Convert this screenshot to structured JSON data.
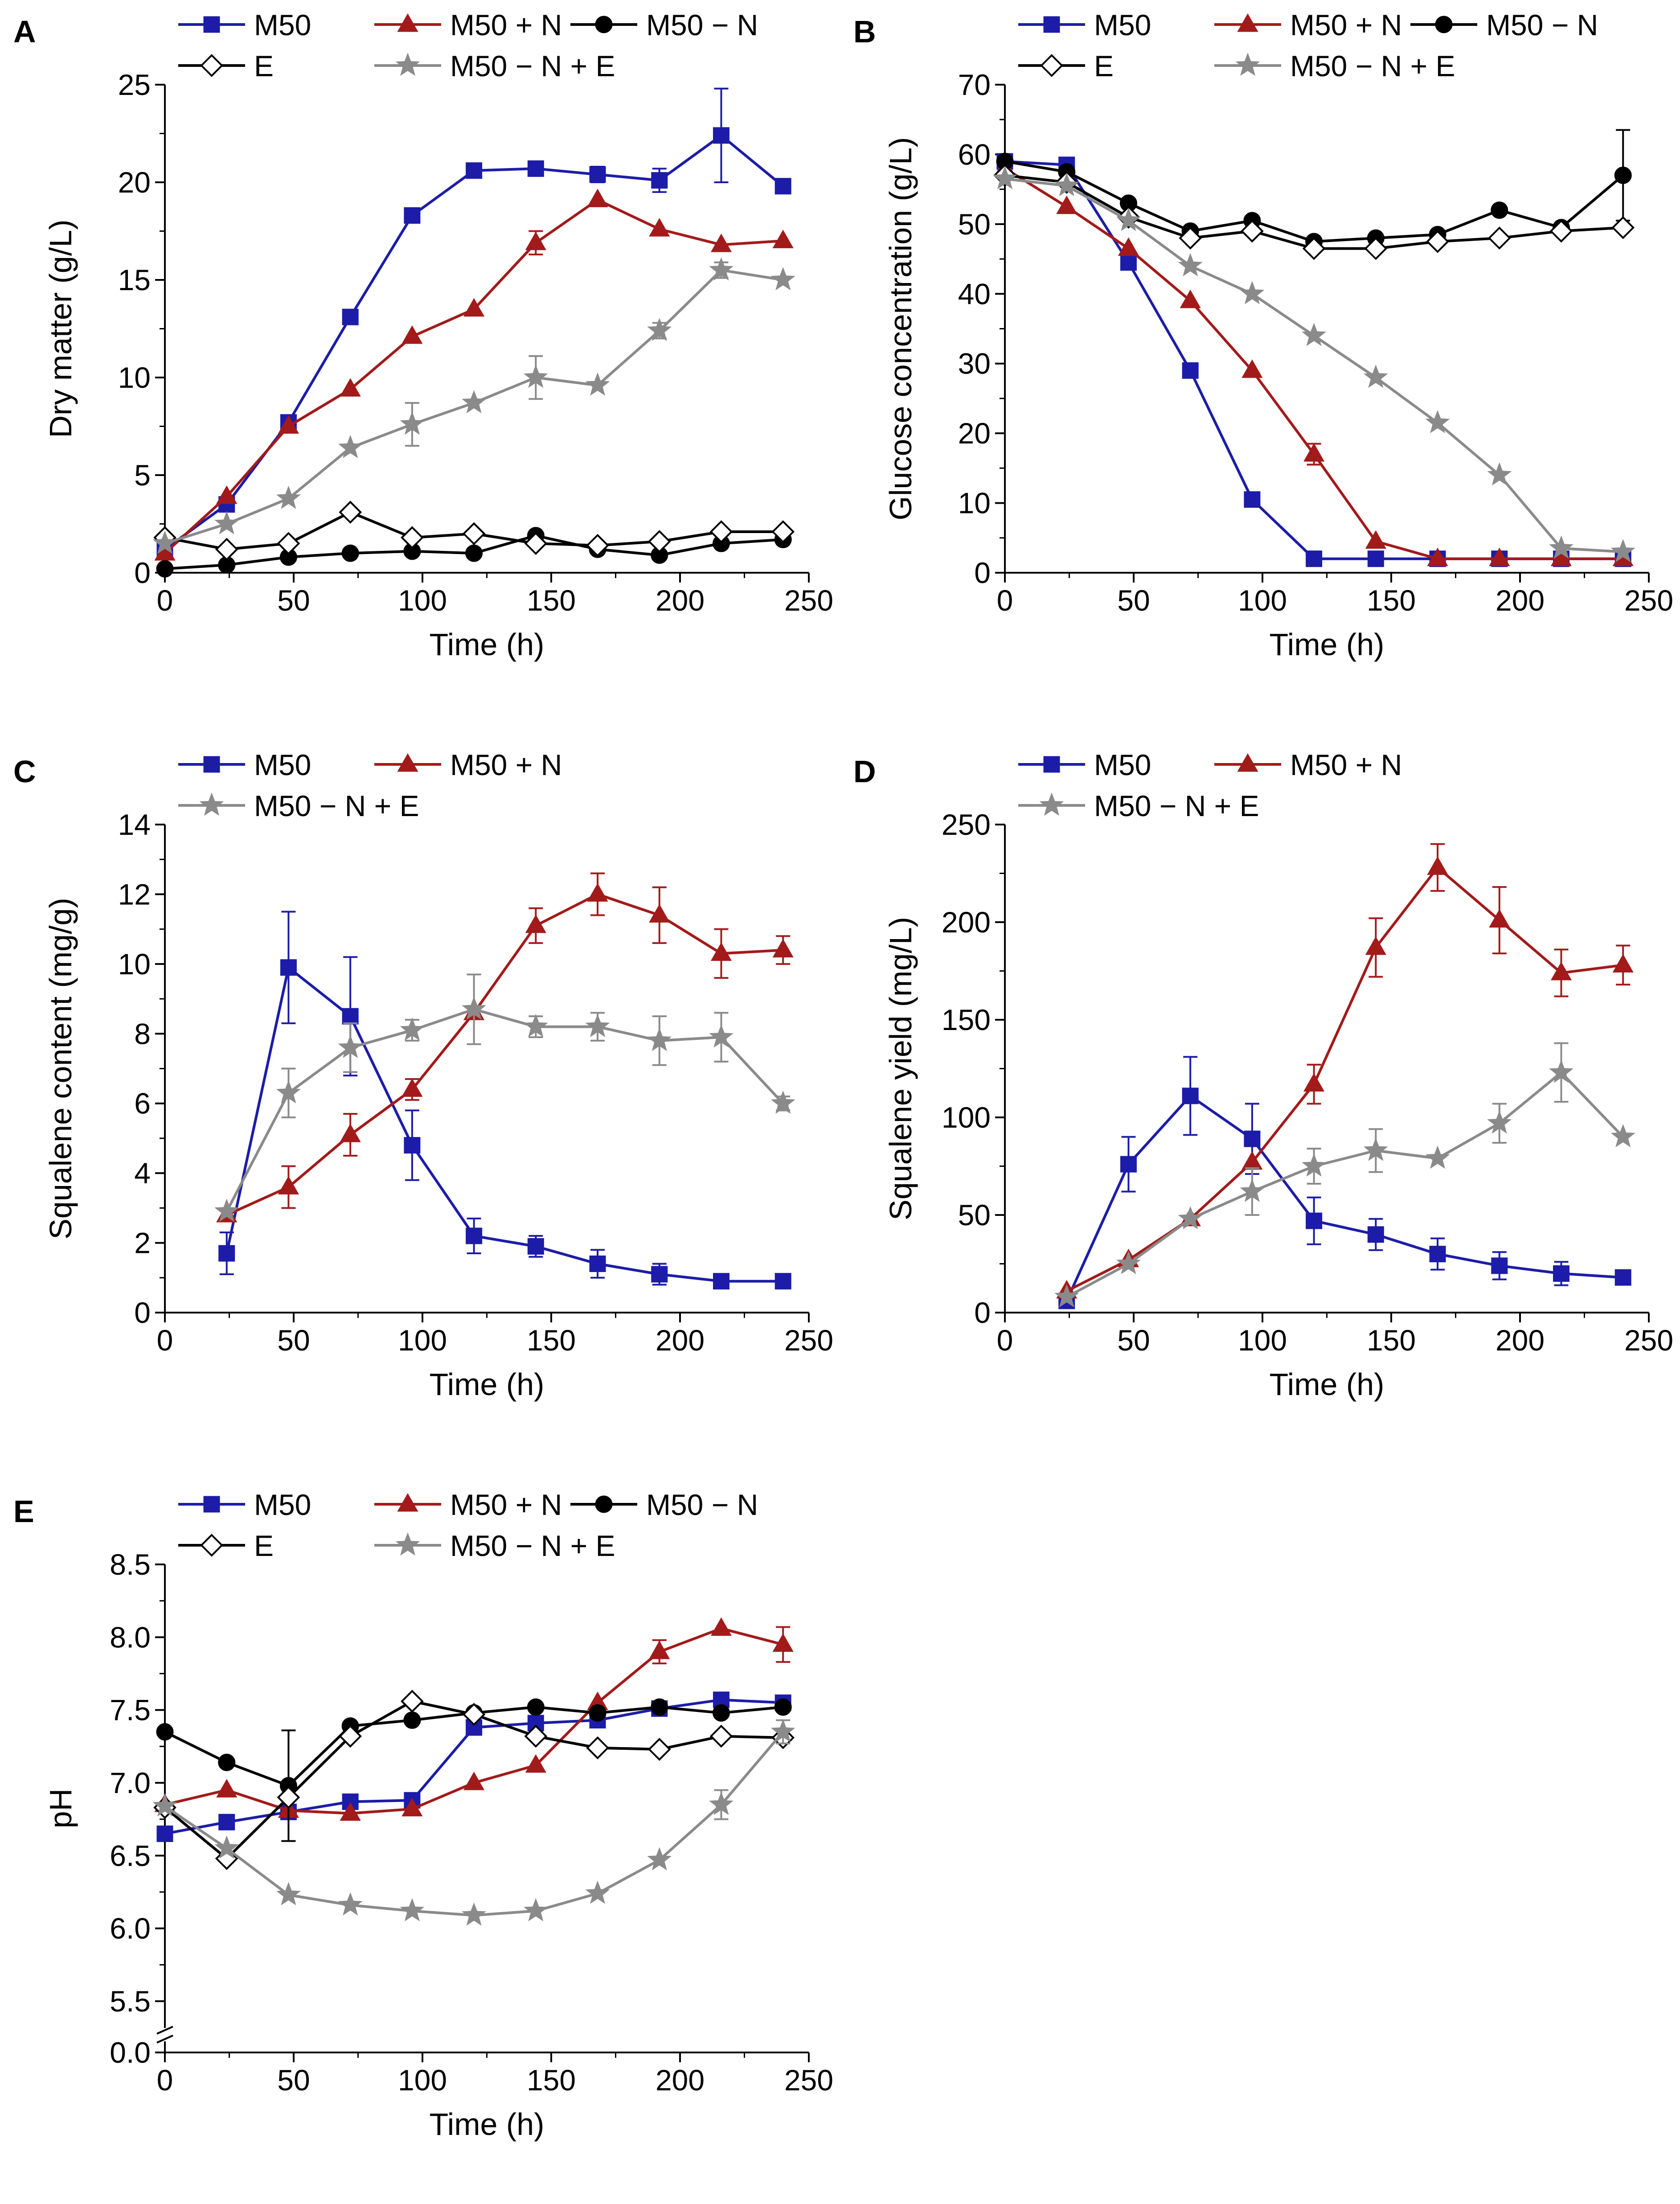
{
  "style": {
    "colors": {
      "M50": "#1c1ca8",
      "M50 + N": "#a31a1a",
      "M50 − N": "#000000",
      "E": "#000000",
      "M50 − N + E": "#8a8a8a"
    },
    "markers": {
      "M50": "square",
      "M50 + N": "triangle",
      "M50 − N": "circle",
      "E": "diamond",
      "M50 − N + E": "star"
    },
    "marker_fill": {
      "M50": "#1c1ca8",
      "M50 + N": "#a31a1a",
      "M50 − N": "#000000",
      "E": "#ffffff",
      "M50 − N + E": "#8a8a8a"
    }
  },
  "chart_data": [
    {
      "panel": "A",
      "type": "line",
      "xlabel": "Time (h)",
      "ylabel": "Dry matter (g/L)",
      "xlim": [
        0,
        250
      ],
      "ylim": [
        0,
        25
      ],
      "xticks": [
        0,
        50,
        100,
        150,
        200,
        250
      ],
      "yticks": [
        0,
        5,
        10,
        15,
        20,
        25
      ],
      "legend_rows": [
        [
          "M50",
          "M50 + N",
          "M50 − N"
        ],
        [
          "E",
          "M50 − N + E"
        ]
      ],
      "series": [
        {
          "name": "M50",
          "x": [
            0,
            24,
            48,
            72,
            96,
            120,
            144,
            168,
            192,
            216,
            240
          ],
          "y": [
            1.2,
            3.5,
            7.7,
            13.1,
            18.3,
            20.6,
            20.7,
            20.4,
            20.1,
            22.4,
            19.8
          ],
          "err": [
            0,
            0,
            0,
            0,
            0,
            0,
            0,
            0.4,
            0.6,
            2.4,
            0
          ]
        },
        {
          "name": "M50 + N",
          "x": [
            0,
            24,
            48,
            72,
            96,
            120,
            144,
            168,
            192,
            216,
            240
          ],
          "y": [
            1.0,
            3.9,
            7.5,
            9.4,
            12.1,
            13.5,
            16.9,
            19.1,
            17.6,
            16.8,
            17.0
          ],
          "err": [
            0,
            0,
            0,
            0,
            0,
            0,
            0.6,
            0,
            0,
            0,
            0
          ]
        },
        {
          "name": "M50 − N",
          "x": [
            0,
            24,
            48,
            72,
            96,
            120,
            144,
            168,
            192,
            216,
            240
          ],
          "y": [
            0.2,
            0.4,
            0.8,
            1.0,
            1.1,
            1.0,
            1.9,
            1.2,
            0.9,
            1.5,
            1.7
          ],
          "err": [
            0,
            0,
            0,
            0,
            0,
            0,
            0,
            0,
            0,
            0,
            0
          ]
        },
        {
          "name": "E",
          "x": [
            0,
            24,
            48,
            72,
            96,
            120,
            144,
            168,
            192,
            216,
            240
          ],
          "y": [
            1.8,
            1.2,
            1.5,
            3.1,
            1.8,
            2.0,
            1.5,
            1.4,
            1.6,
            2.1,
            2.1
          ],
          "err": [
            0,
            0,
            0,
            0,
            0,
            0,
            0,
            0,
            0,
            0,
            0
          ]
        },
        {
          "name": "M50 − N + E",
          "x": [
            0,
            24,
            48,
            72,
            96,
            120,
            144,
            168,
            192,
            216,
            240
          ],
          "y": [
            1.5,
            2.5,
            3.8,
            6.4,
            7.6,
            8.7,
            10.0,
            9.6,
            12.4,
            15.5,
            15.0
          ],
          "err": [
            0,
            0,
            0,
            0,
            1.1,
            0,
            1.1,
            0,
            0.4,
            0.4,
            0
          ]
        }
      ]
    },
    {
      "panel": "B",
      "type": "line",
      "xlabel": "Time (h)",
      "ylabel": "Glucose concentration (g/L)",
      "xlim": [
        0,
        250
      ],
      "ylim": [
        0,
        70
      ],
      "xticks": [
        0,
        50,
        100,
        150,
        200,
        250
      ],
      "yticks": [
        0,
        10,
        20,
        30,
        40,
        50,
        60,
        70
      ],
      "legend_rows": [
        [
          "M50",
          "M50 + N",
          "M50 − N"
        ],
        [
          "E",
          "M50 − N + E"
        ]
      ],
      "series": [
        {
          "name": "M50",
          "x": [
            0,
            24,
            48,
            72,
            96,
            120,
            144,
            168,
            192,
            216,
            240
          ],
          "y": [
            59.0,
            58.5,
            44.5,
            29.0,
            10.5,
            2.0,
            2.0,
            2.0,
            2.0,
            2.0,
            2.0
          ],
          "err": [
            0,
            0,
            0,
            0,
            0,
            0,
            0,
            0,
            0,
            0,
            0
          ]
        },
        {
          "name": "M50 + N",
          "x": [
            0,
            24,
            48,
            72,
            96,
            120,
            144,
            168,
            192,
            216,
            240
          ],
          "y": [
            58.0,
            52.5,
            46.5,
            39.0,
            29.0,
            17.0,
            4.5,
            2.0,
            2.0,
            2.0,
            2.0
          ],
          "err": [
            0,
            0,
            0,
            0,
            0,
            1.5,
            0,
            0,
            0,
            0,
            0
          ]
        },
        {
          "name": "M50 − N",
          "x": [
            0,
            24,
            48,
            72,
            96,
            120,
            144,
            168,
            192,
            216,
            240
          ],
          "y": [
            59.0,
            57.5,
            53.0,
            49.0,
            50.5,
            47.5,
            48.0,
            48.5,
            52.0,
            49.5,
            57.0
          ],
          "err": [
            0,
            0,
            0,
            0,
            0,
            0,
            0,
            0,
            0,
            0,
            6.5
          ]
        },
        {
          "name": "E",
          "x": [
            0,
            24,
            48,
            72,
            96,
            120,
            144,
            168,
            192,
            216,
            240
          ],
          "y": [
            57.0,
            56.0,
            51.0,
            48.0,
            49.0,
            46.5,
            46.5,
            47.5,
            48.0,
            49.0,
            49.5
          ],
          "err": [
            0,
            0,
            0,
            0,
            0,
            0,
            0,
            0,
            0,
            0,
            0
          ]
        },
        {
          "name": "M50 − N + E",
          "x": [
            0,
            24,
            48,
            72,
            96,
            120,
            144,
            168,
            192,
            216,
            240
          ],
          "y": [
            56.5,
            55.5,
            50.5,
            44.0,
            40.0,
            34.0,
            28.0,
            21.5,
            14.0,
            3.5,
            3.0
          ],
          "err": [
            0,
            0,
            0,
            0,
            0,
            0,
            0,
            0,
            0,
            0,
            0
          ]
        }
      ]
    },
    {
      "panel": "C",
      "type": "line",
      "xlabel": "Time (h)",
      "ylabel": "Squalene content (mg/g)",
      "xlim": [
        0,
        250
      ],
      "ylim": [
        0,
        14
      ],
      "xticks": [
        0,
        50,
        100,
        150,
        200,
        250
      ],
      "yticks": [
        0,
        2,
        4,
        6,
        8,
        10,
        12,
        14
      ],
      "legend_rows": [
        [
          "M50",
          "M50 + N"
        ],
        [
          "M50 − N + E"
        ]
      ],
      "series": [
        {
          "name": "M50",
          "x": [
            24,
            48,
            72,
            96,
            120,
            144,
            168,
            192,
            216,
            240
          ],
          "y": [
            1.7,
            9.9,
            8.5,
            4.8,
            2.2,
            1.9,
            1.4,
            1.1,
            0.9,
            0.9
          ],
          "err": [
            0.6,
            1.6,
            1.7,
            1.0,
            0.5,
            0.3,
            0.4,
            0.3,
            0.2,
            0
          ]
        },
        {
          "name": "M50 + N",
          "x": [
            24,
            48,
            72,
            96,
            120,
            144,
            168,
            192,
            216,
            240
          ],
          "y": [
            2.8,
            3.6,
            5.1,
            6.4,
            8.6,
            11.1,
            12.0,
            11.4,
            10.3,
            10.4
          ],
          "err": [
            0,
            0.6,
            0.6,
            0.3,
            0,
            0.5,
            0.6,
            0.8,
            0.7,
            0.4
          ]
        },
        {
          "name": "M50 − N + E",
          "x": [
            24,
            48,
            72,
            96,
            120,
            144,
            168,
            192,
            216,
            240
          ],
          "y": [
            2.9,
            6.3,
            7.6,
            8.1,
            8.7,
            8.2,
            8.2,
            7.8,
            7.9,
            6.0
          ],
          "err": [
            0,
            0.7,
            0.7,
            0.3,
            1.0,
            0.3,
            0.4,
            0.7,
            0.7,
            0.2
          ]
        }
      ]
    },
    {
      "panel": "D",
      "type": "line",
      "xlabel": "Time (h)",
      "ylabel": "Squalene yield (mg/L)",
      "xlim": [
        0,
        250
      ],
      "ylim": [
        0,
        250
      ],
      "xticks": [
        0,
        50,
        100,
        150,
        200,
        250
      ],
      "yticks": [
        0,
        50,
        100,
        150,
        200,
        250
      ],
      "legend_rows": [
        [
          "M50",
          "M50 + N"
        ],
        [
          "M50 − N + E"
        ]
      ],
      "series": [
        {
          "name": "M50",
          "x": [
            24,
            48,
            72,
            96,
            120,
            144,
            168,
            192,
            216,
            240
          ],
          "y": [
            6,
            76,
            111,
            89,
            47,
            40,
            30,
            24,
            20,
            18
          ],
          "err": [
            0,
            14,
            20,
            18,
            12,
            8,
            8,
            7,
            6,
            0
          ]
        },
        {
          "name": "M50 + N",
          "x": [
            24,
            48,
            72,
            96,
            120,
            144,
            168,
            192,
            216,
            240
          ],
          "y": [
            11,
            27,
            48,
            77,
            117,
            187,
            228,
            201,
            174,
            178
          ],
          "err": [
            0,
            0,
            0,
            0,
            10,
            15,
            12,
            17,
            12,
            10
          ]
        },
        {
          "name": "M50 − N + E",
          "x": [
            24,
            48,
            72,
            96,
            120,
            144,
            168,
            192,
            216,
            240
          ],
          "y": [
            8,
            25,
            48,
            62,
            75,
            83,
            79,
            97,
            123,
            90
          ],
          "err": [
            0,
            0,
            0,
            12,
            9,
            11,
            0,
            10,
            15,
            0
          ]
        }
      ]
    },
    {
      "panel": "E",
      "type": "line",
      "xlabel": "Time (h)",
      "ylabel": "pH",
      "xlim": [
        0,
        250
      ],
      "ylim": [
        5.0,
        8.5
      ],
      "axis_break": true,
      "xticks": [
        0,
        50,
        100,
        150,
        200,
        250
      ],
      "yticks": [
        "0.0",
        "5.5",
        "6.0",
        "6.5",
        "7.0",
        "7.5",
        "8.0",
        "8.5"
      ],
      "legend_rows": [
        [
          "M50",
          "M50 + N",
          "M50 − N"
        ],
        [
          "E",
          "M50 − N + E"
        ]
      ],
      "series": [
        {
          "name": "M50",
          "x": [
            0,
            24,
            48,
            72,
            96,
            120,
            144,
            168,
            192,
            216,
            240
          ],
          "y": [
            6.65,
            6.73,
            6.8,
            6.87,
            6.88,
            7.38,
            7.41,
            7.43,
            7.51,
            7.57,
            7.55
          ],
          "err": [
            0,
            0,
            0,
            0,
            0,
            0,
            0,
            0,
            0,
            0,
            0
          ]
        },
        {
          "name": "M50 + N",
          "x": [
            0,
            24,
            48,
            72,
            96,
            120,
            144,
            168,
            192,
            216,
            240
          ],
          "y": [
            6.85,
            6.95,
            6.81,
            6.79,
            6.82,
            7.0,
            7.12,
            7.55,
            7.9,
            8.06,
            7.95
          ],
          "err": [
            0,
            0,
            0,
            0,
            0,
            0,
            0,
            0,
            0.08,
            0,
            0.12
          ]
        },
        {
          "name": "M50 − N",
          "x": [
            0,
            24,
            48,
            72,
            96,
            120,
            144,
            168,
            192,
            216,
            240
          ],
          "y": [
            7.35,
            7.14,
            6.98,
            7.39,
            7.43,
            7.48,
            7.52,
            7.48,
            7.52,
            7.48,
            7.52
          ],
          "err": [
            0,
            0,
            0.38,
            0,
            0,
            0,
            0,
            0,
            0,
            0,
            0
          ]
        },
        {
          "name": "E",
          "x": [
            0,
            24,
            48,
            72,
            96,
            120,
            144,
            168,
            192,
            216,
            240
          ],
          "y": [
            6.83,
            6.48,
            6.9,
            7.32,
            7.56,
            7.47,
            7.32,
            7.24,
            7.23,
            7.32,
            7.31
          ],
          "err": [
            0,
            0,
            0,
            0,
            0,
            0,
            0,
            0,
            0,
            0,
            0
          ]
        },
        {
          "name": "M50 − N + E",
          "x": [
            0,
            24,
            48,
            72,
            96,
            120,
            144,
            168,
            192,
            216,
            240
          ],
          "y": [
            6.84,
            6.55,
            6.23,
            6.16,
            6.12,
            6.09,
            6.12,
            6.24,
            6.47,
            6.85,
            7.35
          ],
          "err": [
            0,
            0,
            0,
            0,
            0,
            0,
            0,
            0,
            0,
            0.1,
            0.08
          ]
        }
      ]
    }
  ]
}
